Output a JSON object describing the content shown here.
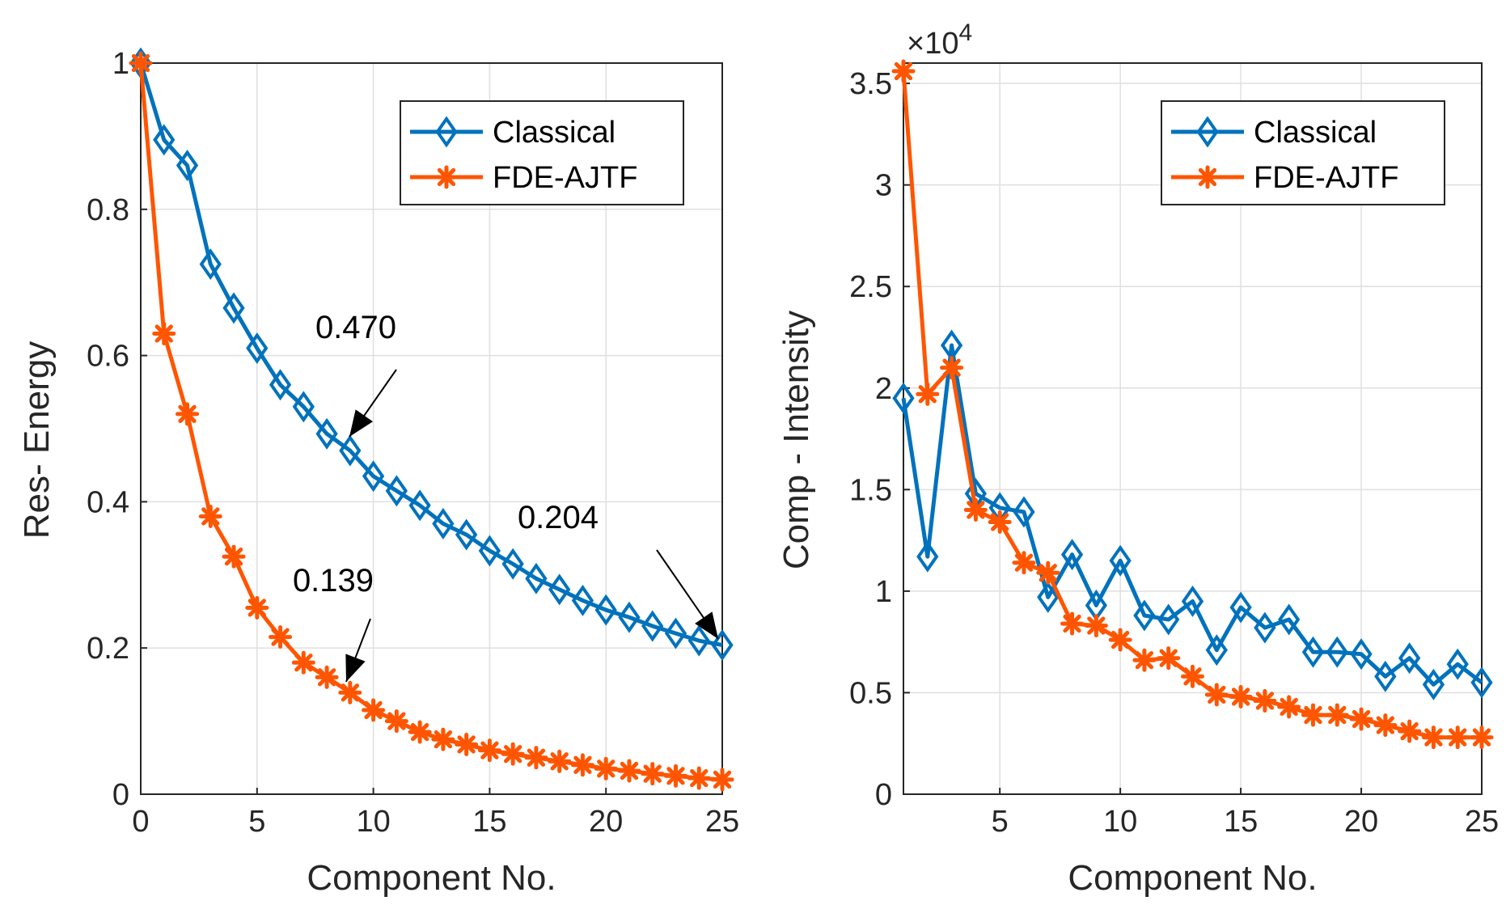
{
  "chart_data": [
    {
      "type": "line",
      "xlabel": "Component No.",
      "ylabel": "Res- Energy",
      "xlim": [
        0,
        25
      ],
      "ylim": [
        0,
        1
      ],
      "xticks": [
        "0",
        "5",
        "10",
        "15",
        "20",
        "25"
      ],
      "yticks": [
        "0",
        "0.2",
        "0.4",
        "0.6",
        "0.8",
        "1"
      ],
      "grid": true,
      "legend_position": "top-right",
      "x": [
        0,
        1,
        2,
        3,
        4,
        5,
        6,
        7,
        8,
        9,
        10,
        11,
        12,
        13,
        14,
        15,
        16,
        17,
        18,
        19,
        20,
        21,
        22,
        23,
        24,
        25
      ],
      "series": [
        {
          "name": "Classical",
          "color": "#0072BD",
          "marker": "diamond",
          "values": [
            1.0,
            0.895,
            0.86,
            0.725,
            0.665,
            0.61,
            0.56,
            0.53,
            0.493,
            0.47,
            0.435,
            0.415,
            0.395,
            0.37,
            0.355,
            0.333,
            0.315,
            0.295,
            0.28,
            0.265,
            0.252,
            0.242,
            0.23,
            0.22,
            0.21,
            0.204
          ]
        },
        {
          "name": "FDE-AJTF",
          "color": "#FF5500",
          "marker": "asterisk",
          "values": [
            1.0,
            0.63,
            0.52,
            0.38,
            0.325,
            0.255,
            0.215,
            0.18,
            0.16,
            0.139,
            0.115,
            0.1,
            0.085,
            0.075,
            0.068,
            0.06,
            0.055,
            0.05,
            0.045,
            0.04,
            0.035,
            0.032,
            0.028,
            0.025,
            0.022,
            0.02
          ]
        }
      ],
      "annotations": [
        {
          "text": "0.470",
          "x": 9,
          "y": 0.47
        },
        {
          "text": "0.139",
          "x": 9,
          "y": 0.139
        },
        {
          "text": "0.204",
          "x": 25,
          "y": 0.204
        }
      ]
    },
    {
      "type": "line",
      "xlabel": "Component No.",
      "ylabel": "Comp - Intensity",
      "exponent_label": "×10",
      "exponent_power": "4",
      "xlim": [
        1,
        25
      ],
      "ylim": [
        0,
        3.6
      ],
      "xticks": [
        "5",
        "10",
        "15",
        "20",
        "25"
      ],
      "yticks": [
        "0",
        "0.5",
        "1",
        "1.5",
        "2",
        "2.5",
        "3",
        "3.5"
      ],
      "grid": true,
      "legend_position": "top-right",
      "x": [
        1,
        2,
        3,
        4,
        5,
        6,
        7,
        8,
        9,
        10,
        11,
        12,
        13,
        14,
        15,
        16,
        17,
        18,
        19,
        20,
        21,
        22,
        23,
        24,
        25
      ],
      "series": [
        {
          "name": "Classical",
          "color": "#0072BD",
          "marker": "diamond",
          "values": [
            1.95,
            1.17,
            2.21,
            1.48,
            1.41,
            1.39,
            0.97,
            1.18,
            0.93,
            1.15,
            0.88,
            0.86,
            0.95,
            0.71,
            0.92,
            0.82,
            0.86,
            0.7,
            0.7,
            0.69,
            0.58,
            0.67,
            0.54,
            0.64,
            0.55
          ]
        },
        {
          "name": "FDE-AJTF",
          "color": "#FF5500",
          "marker": "asterisk",
          "values": [
            3.56,
            1.97,
            2.1,
            1.4,
            1.34,
            1.14,
            1.09,
            0.84,
            0.83,
            0.76,
            0.66,
            0.67,
            0.58,
            0.49,
            0.48,
            0.46,
            0.43,
            0.39,
            0.39,
            0.37,
            0.34,
            0.31,
            0.28,
            0.28,
            0.28
          ]
        }
      ]
    }
  ]
}
